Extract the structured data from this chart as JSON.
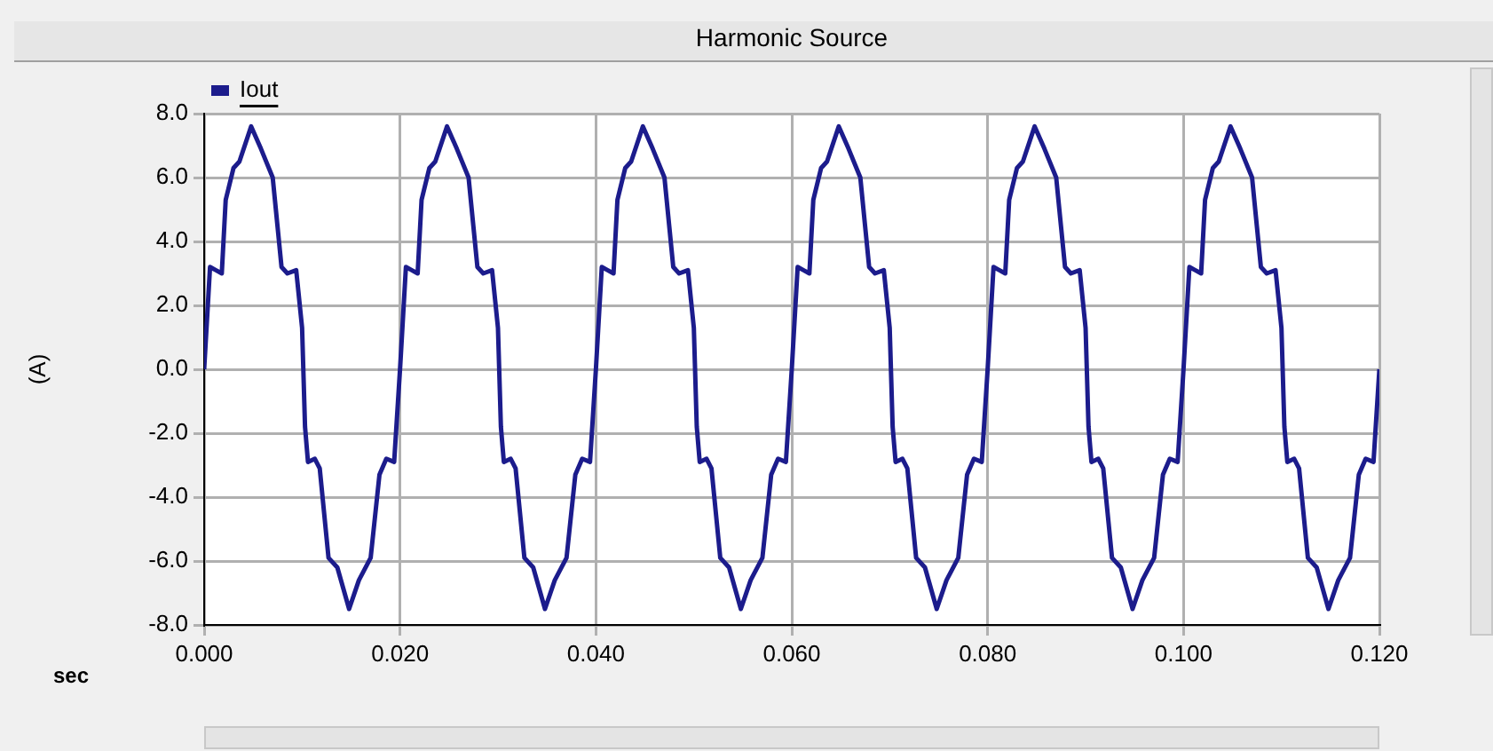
{
  "chart_data": {
    "type": "line",
    "title": "Harmonic Source",
    "xlabel": "sec",
    "ylabel": "(A)",
    "x": [
      0,
      0.0006,
      0.0012,
      0.0018,
      0.0022,
      0.003,
      0.0036,
      0.0048,
      0.0058,
      0.007,
      0.0079,
      0.0085,
      0.0094,
      0.01,
      0.0103,
      0.0106,
      0.0113,
      0.0118,
      0.0127,
      0.0136,
      0.0148,
      0.0158,
      0.017,
      0.0179,
      0.0186,
      0.0194,
      0.02,
      0.0206,
      0.0212,
      0.0218,
      0.0222,
      0.023,
      0.0236,
      0.0248,
      0.0258,
      0.027,
      0.0279,
      0.0285,
      0.0294,
      0.03,
      0.0303,
      0.0306,
      0.0313,
      0.0318,
      0.0327,
      0.0336,
      0.0348,
      0.0358,
      0.037,
      0.0379,
      0.0386,
      0.0394,
      0.04,
      0.0406,
      0.0412,
      0.0418,
      0.0422,
      0.043,
      0.0436,
      0.0448,
      0.0458,
      0.047,
      0.0479,
      0.0485,
      0.0494,
      0.05,
      0.0503,
      0.0506,
      0.0513,
      0.0518,
      0.0527,
      0.0536,
      0.0548,
      0.0558,
      0.057,
      0.0579,
      0.0586,
      0.0594,
      0.06,
      0.0606,
      0.0612,
      0.0618,
      0.0622,
      0.063,
      0.0636,
      0.0648,
      0.0658,
      0.067,
      0.0679,
      0.0685,
      0.0694,
      0.07,
      0.0703,
      0.0706,
      0.0713,
      0.0718,
      0.0727,
      0.0736,
      0.0748,
      0.0758,
      0.077,
      0.0779,
      0.0786,
      0.0794,
      0.08,
      0.0806,
      0.0812,
      0.0818,
      0.0822,
      0.083,
      0.0836,
      0.0848,
      0.0858,
      0.087,
      0.0879,
      0.0885,
      0.0894,
      0.09,
      0.0903,
      0.0906,
      0.0913,
      0.0918,
      0.0927,
      0.0936,
      0.0948,
      0.0958,
      0.097,
      0.0979,
      0.0986,
      0.0994,
      0.1,
      0.1006,
      0.1012,
      0.1018,
      0.1022,
      0.103,
      0.1036,
      0.1048,
      0.1058,
      0.107,
      0.1079,
      0.1085,
      0.1094,
      0.11,
      0.1103,
      0.1106,
      0.1113,
      0.1118,
      0.1127,
      0.1136,
      0.1148,
      0.1158,
      0.117,
      0.1179,
      0.1186,
      0.1194,
      0.12
    ],
    "series": [
      {
        "name": "Iout",
        "color": "#1c1c8c",
        "values": [
          0,
          3.2,
          3.1,
          3.0,
          5.3,
          6.3,
          6.5,
          7.6,
          6.9,
          6.0,
          3.2,
          3.0,
          3.1,
          1.3,
          -1.8,
          -2.9,
          -2.8,
          -3.1,
          -5.9,
          -6.2,
          -7.5,
          -6.6,
          -5.9,
          -3.3,
          -2.8,
          -2.9,
          0,
          3.2,
          3.1,
          3.0,
          5.3,
          6.3,
          6.5,
          7.6,
          6.9,
          6.0,
          3.2,
          3.0,
          3.1,
          1.3,
          -1.8,
          -2.9,
          -2.8,
          -3.1,
          -5.9,
          -6.2,
          -7.5,
          -6.6,
          -5.9,
          -3.3,
          -2.8,
          -2.9,
          0,
          3.2,
          3.1,
          3.0,
          5.3,
          6.3,
          6.5,
          7.6,
          6.9,
          6.0,
          3.2,
          3.0,
          3.1,
          1.3,
          -1.8,
          -2.9,
          -2.8,
          -3.1,
          -5.9,
          -6.2,
          -7.5,
          -6.6,
          -5.9,
          -3.3,
          -2.8,
          -2.9,
          0,
          3.2,
          3.1,
          3.0,
          5.3,
          6.3,
          6.5,
          7.6,
          6.9,
          6.0,
          3.2,
          3.0,
          3.1,
          1.3,
          -1.8,
          -2.9,
          -2.8,
          -3.1,
          -5.9,
          -6.2,
          -7.5,
          -6.6,
          -5.9,
          -3.3,
          -2.8,
          -2.9,
          0,
          3.2,
          3.1,
          3.0,
          5.3,
          6.3,
          6.5,
          7.6,
          6.9,
          6.0,
          3.2,
          3.0,
          3.1,
          1.3,
          -1.8,
          -2.9,
          -2.8,
          -3.1,
          -5.9,
          -6.2,
          -7.5,
          -6.6,
          -5.9,
          -3.3,
          -2.8,
          -2.9,
          0,
          3.2,
          3.1,
          3.0,
          5.3,
          6.3,
          6.5,
          7.6,
          6.9,
          6.0,
          3.2,
          3.0,
          3.1,
          1.3,
          -1.8,
          -2.9,
          -2.8,
          -3.1,
          -5.9,
          -6.2,
          -7.5,
          -6.6,
          -5.9,
          -3.3,
          -2.8,
          -2.9,
          0
        ]
      }
    ],
    "xlim": [
      0,
      0.12
    ],
    "xticks": [
      {
        "value": 0,
        "label": "0.000"
      },
      {
        "value": 0.02,
        "label": "0.020"
      },
      {
        "value": 0.04,
        "label": "0.040"
      },
      {
        "value": 0.06,
        "label": "0.060"
      },
      {
        "value": 0.08,
        "label": "0.080"
      },
      {
        "value": 0.1,
        "label": "0.100"
      },
      {
        "value": 0.12,
        "label": "0.120"
      }
    ],
    "ylim": [
      -8,
      8
    ],
    "yticks": [
      {
        "value": -8,
        "label": "-8.0"
      },
      {
        "value": -6,
        "label": "-6.0"
      },
      {
        "value": -4,
        "label": "-4.0"
      },
      {
        "value": -2,
        "label": "-2.0"
      },
      {
        "value": 0,
        "label": "0.0"
      },
      {
        "value": 2,
        "label": "2.0"
      },
      {
        "value": 4,
        "label": "4.0"
      },
      {
        "value": 6,
        "label": "6.0"
      },
      {
        "value": 8,
        "label": "8.0"
      }
    ],
    "grid": true,
    "legend": "top left",
    "marker": "none",
    "line_style": "solid"
  }
}
